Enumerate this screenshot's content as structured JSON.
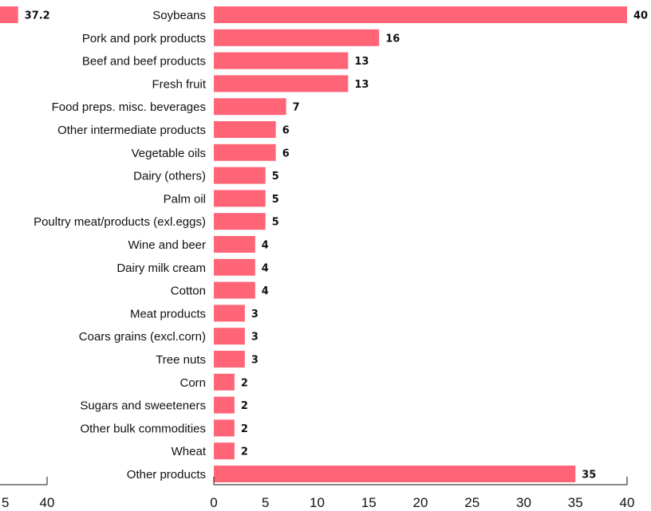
{
  "colors": {
    "bar": "#ff6577",
    "text": "#111111",
    "axis": "#111111"
  },
  "chart_data": [
    {
      "type": "bar",
      "orientation": "horizontal",
      "note": "partially cropped chart at left edge",
      "values": [
        37.2
      ],
      "value_labels": [
        "37.2"
      ],
      "xlim": [
        0,
        40
      ],
      "x_ticks": [
        "5",
        "40"
      ]
    },
    {
      "type": "bar",
      "orientation": "horizontal",
      "categories": [
        "Soybeans",
        "Pork and pork products",
        "Beef and beef products",
        "Fresh fruit",
        "Food preps. misc. beverages",
        "Other intermediate products",
        "Vegetable oils",
        "Dairy (others)",
        "Palm oil",
        "Poultry meat/products (exl.eggs)",
        "Wine and beer",
        "Dairy milk cream",
        "Cotton",
        "Meat products",
        "Coars grains (excl.corn)",
        "Tree nuts",
        "Corn",
        "Sugars and sweeteners",
        "Other bulk commodities",
        "Wheat",
        "Other products"
      ],
      "values": [
        40,
        16,
        13,
        13,
        7,
        6,
        6,
        5,
        5,
        5,
        4,
        4,
        4,
        3,
        3,
        3,
        2,
        2,
        2,
        2,
        35
      ],
      "value_labels": [
        "40",
        "16",
        "13",
        "13",
        "7",
        "6",
        "6",
        "5",
        "5",
        "5",
        "4",
        "4",
        "4",
        "3",
        "3",
        "3",
        "2",
        "2",
        "2",
        "2",
        "35"
      ],
      "xlim": [
        0,
        40
      ],
      "x_ticks": [
        "0",
        "5",
        "10",
        "15",
        "20",
        "25",
        "30",
        "35",
        "40"
      ],
      "x_tick_values": [
        0,
        5,
        10,
        15,
        20,
        25,
        30,
        35,
        40
      ]
    }
  ]
}
